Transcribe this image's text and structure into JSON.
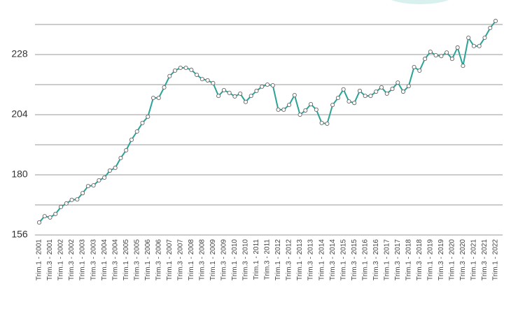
{
  "chart_data": {
    "type": "line",
    "categories": [
      "Trim.1 - 2001",
      null,
      "Trim.3 - 2001",
      null,
      "Trim.1 - 2002",
      null,
      "Trim.3 - 2002",
      null,
      "Trim.1 - 2003",
      null,
      "Trim.3 - 2003",
      null,
      "Trim.1 - 2004",
      null,
      "Trim.3 - 2004",
      null,
      "Trim.1 - 2005",
      null,
      "Trim.3 - 2005",
      null,
      "Trim.1 - 2006",
      null,
      "Trim.3 - 2006",
      null,
      "Trim.1 - 2007",
      null,
      "Trim.3 - 2007",
      null,
      "Trim.1 - 2008",
      null,
      "Trim.3 - 2008",
      null,
      "Trim.1 - 2009",
      null,
      "Trim.3 - 2009",
      null,
      "Trim.1 - 2010",
      null,
      "Trim.3 - 2010",
      null,
      "Trim.1 - 2011",
      null,
      "Trim.3 - 2011",
      null,
      "Trim.1 - 2012",
      null,
      "Trim.3 - 2012",
      null,
      "Trim.1 - 2013",
      null,
      "Trim.3 - 2013",
      null,
      "Trim.1 - 2014",
      null,
      "Trim.3 - 2014",
      null,
      "Trim.1 - 2015",
      null,
      "Trim.3 - 2015",
      null,
      "Trim.1 - 2016",
      null,
      "Trim.3 - 2016",
      null,
      "Trim.1 - 2017",
      null,
      "Trim.3 - 2017",
      null,
      "Trim.1 - 2018",
      null,
      "Trim.3 - 2018",
      null,
      "Trim.1 - 2019",
      null,
      "Trim.3 - 2019",
      null,
      "Trim.1 - 2020",
      null,
      "Trim.3 - 2020",
      null,
      "Trim.1 - 2021",
      null,
      "Trim.3 - 2021",
      null,
      "Trim.1 - 2022"
    ],
    "values": [
      161.0,
      163.5,
      163.0,
      164.4,
      167.2,
      168.6,
      170.0,
      170.2,
      172.7,
      175.5,
      175.8,
      177.8,
      178.9,
      181.7,
      182.8,
      186.7,
      189.8,
      194.0,
      197.3,
      200.7,
      203.2,
      210.7,
      210.7,
      214.9,
      219.4,
      221.6,
      222.7,
      222.7,
      221.9,
      219.9,
      218.2,
      217.7,
      216.6,
      211.5,
      213.8,
      212.7,
      211.3,
      212.4,
      209.1,
      211.5,
      213.5,
      215.2,
      216.0,
      215.7,
      206.0,
      206.0,
      207.9,
      211.8,
      204.0,
      205.7,
      208.2,
      206.0,
      200.7,
      200.4,
      207.9,
      210.7,
      214.1,
      209.3,
      208.7,
      213.5,
      211.5,
      211.5,
      213.2,
      214.9,
      212.4,
      214.3,
      216.8,
      213.2,
      215.4,
      223.0,
      221.6,
      226.3,
      229.1,
      227.7,
      227.4,
      228.8,
      226.3,
      230.8,
      223.5,
      234.7,
      231.4,
      231.4,
      234.7,
      238.6,
      241.4
    ],
    "color": "#2aa397",
    "ylim": [
      156,
      242
    ],
    "yticks": [
      156,
      180,
      204,
      228
    ],
    "minor_yticks": [
      168,
      192,
      216,
      240
    ],
    "grid": true
  }
}
